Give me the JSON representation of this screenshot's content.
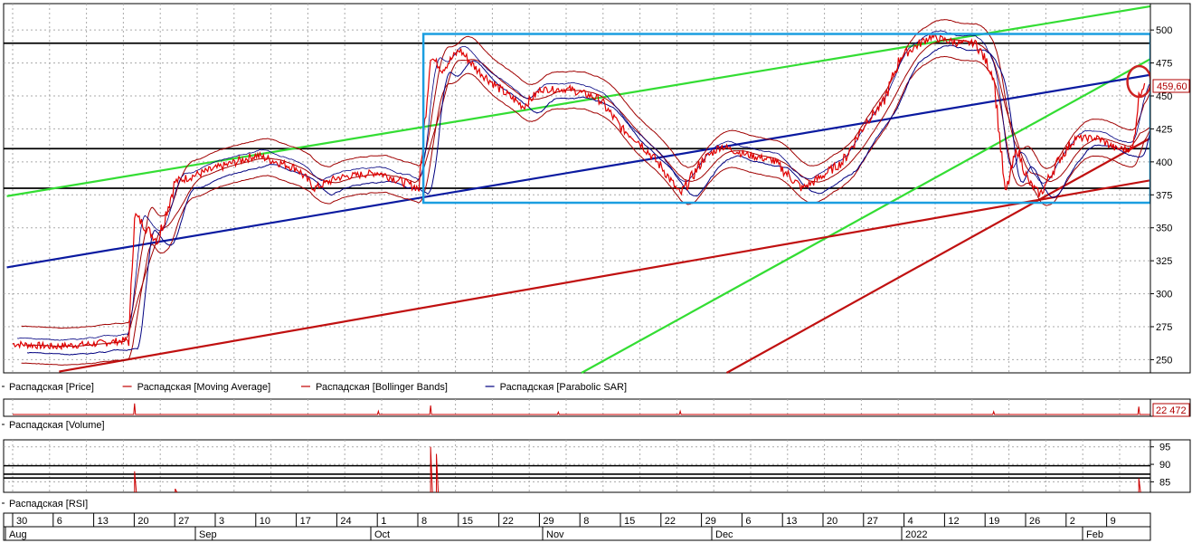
{
  "legend_main": {
    "items": [
      {
        "label": "Распадская [Price]",
        "color": "#c00000"
      },
      {
        "label": "Распадская [Moving Average]",
        "color": "#c00000"
      },
      {
        "label": "Распадская [Bollinger Bands]",
        "color": "#c00000"
      },
      {
        "label": "Распадская [Parabolic SAR]",
        "color": "#000080"
      }
    ]
  },
  "volume_panel": {
    "label": "Распадская [Volume]",
    "last_value": "22 472"
  },
  "rsi_panel": {
    "label": "Распадская [RSI]"
  },
  "price_panel": {
    "last_price": "459,60"
  },
  "colors": {
    "price": "#e00000",
    "band": "#a00000",
    "sar": "#000080",
    "channel_green": "#33dd33",
    "trend_blue": "#0a1aa0",
    "trend_red": "#c01010",
    "box": "#1b9ee0",
    "hline": "#000000",
    "marker_circle": "#cc2222"
  },
  "chart_data": [
    {
      "type": "line",
      "title": "",
      "ylim": [
        240,
        520
      ],
      "y_ticks": [
        250,
        275,
        300,
        325,
        350,
        375,
        400,
        425,
        450,
        475,
        500
      ],
      "horizontal_levels": [
        490,
        410,
        380
      ],
      "x_day_labels": [
        "30",
        "6",
        "13",
        "20",
        "27",
        "3",
        "10",
        "17",
        "24",
        "1",
        "8",
        "15",
        "22",
        "29",
        "8",
        "15",
        "22",
        "29",
        "6",
        "13",
        "20",
        "27",
        "4",
        "12",
        "19",
        "26",
        "2",
        "9"
      ],
      "x_month_labels": [
        "Aug",
        "Sep",
        "Oct",
        "Nov",
        "Dec",
        "2022",
        "Feb"
      ],
      "series": [
        {
          "name": "Распадская [Price]",
          "x": [
            "30 Jul",
            "6 Aug",
            "13 Aug",
            "19 Aug",
            "20 Aug",
            "24 Aug",
            "27 Aug",
            "3 Sep",
            "10 Sep",
            "17 Sep",
            "20 Sep",
            "24 Sep",
            "1 Oct",
            "8 Oct",
            "10 Oct",
            "12 Oct",
            "15 Oct",
            "18 Oct",
            "22 Oct",
            "26 Oct",
            "29 Oct",
            "3 Nov",
            "8 Nov",
            "12 Nov",
            "15 Nov",
            "19 Nov",
            "22 Nov",
            "26 Nov",
            "29 Nov",
            "3 Dec",
            "8 Dec",
            "13 Dec",
            "15 Dec",
            "20 Dec",
            "24 Dec",
            "27 Dec",
            "30 Dec",
            "4 Jan",
            "9 Jan",
            "12 Jan",
            "15 Jan",
            "17 Jan",
            "19 Jan",
            "21 Jan",
            "23 Jan",
            "26 Jan",
            "29 Jan",
            "2 Feb",
            "5 Feb",
            "8 Feb",
            "9 Feb",
            "10 Feb"
          ],
          "values": [
            262,
            260,
            262,
            265,
            360,
            340,
            385,
            395,
            405,
            395,
            380,
            388,
            392,
            380,
            480,
            470,
            485,
            470,
            455,
            442,
            455,
            455,
            448,
            425,
            415,
            395,
            375,
            402,
            412,
            406,
            401,
            380,
            385,
            400,
            430,
            445,
            480,
            495,
            490,
            490,
            465,
            375,
            410,
            385,
            375,
            400,
            418,
            418,
            410,
            410,
            450,
            459.6
          ]
        },
        {
          "name": "Распадская [Volume]",
          "x": [
            "20 Aug",
            "1 Oct",
            "10 Oct",
            "1 Nov",
            "22 Nov",
            "15 Jan",
            "9 Feb"
          ],
          "values": [
            30000,
            12000,
            25000,
            10000,
            12000,
            11000,
            22472
          ]
        },
        {
          "name": "Распадская [RSI]",
          "ylim": [
            82,
            97
          ],
          "y_ticks": [
            85,
            90,
            95
          ],
          "horizontal_levels": [
            89.6,
            87.2,
            86.1
          ],
          "x": [
            "20 Aug",
            "27 Aug",
            "10 Oct",
            "11 Oct",
            "9 Feb"
          ],
          "values": [
            88,
            83,
            95,
            93,
            86
          ]
        }
      ]
    }
  ]
}
